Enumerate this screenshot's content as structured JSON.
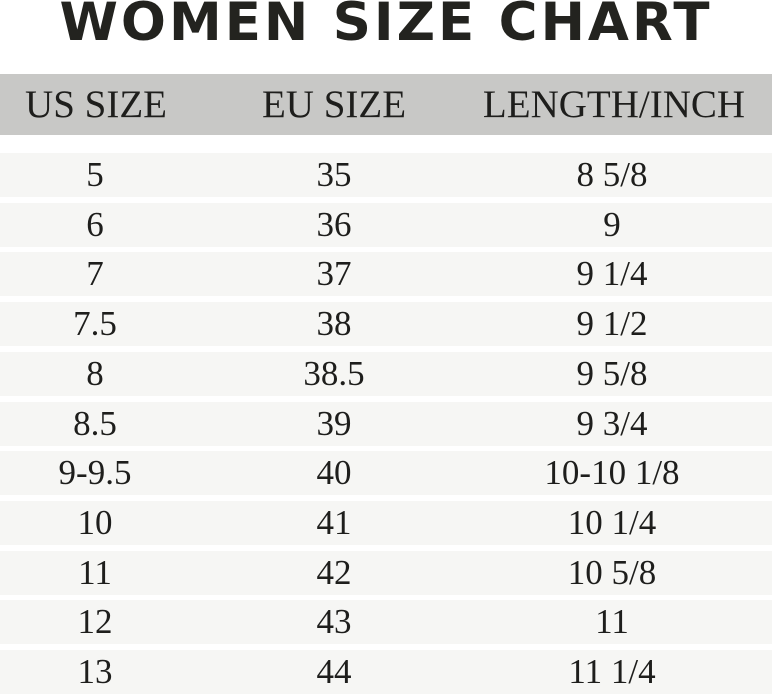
{
  "title": "WOMEN SIZE CHART",
  "headers": [
    "US SIZE",
    "EU SIZE",
    "LENGTH/INCH"
  ],
  "rows": [
    [
      "5",
      "35",
      "8 5/8"
    ],
    [
      "6",
      "36",
      "9"
    ],
    [
      "7",
      "37",
      "9 1/4"
    ],
    [
      "7.5",
      "38",
      "9 1/2"
    ],
    [
      "8",
      "38.5",
      "9 5/8"
    ],
    [
      "8.5",
      "39",
      "9 3/4"
    ],
    [
      "9-9.5",
      "40",
      "10-10 1/8"
    ],
    [
      "10",
      "41",
      "10 1/4"
    ],
    [
      "11",
      "42",
      "10 5/8"
    ],
    [
      "12",
      "43",
      "11"
    ],
    [
      "13",
      "44",
      "11 1/4"
    ]
  ],
  "colors": {
    "header_bg": "#c8c8c6",
    "row_bg": "#f6f6f4",
    "text": "#1e1e1c"
  }
}
